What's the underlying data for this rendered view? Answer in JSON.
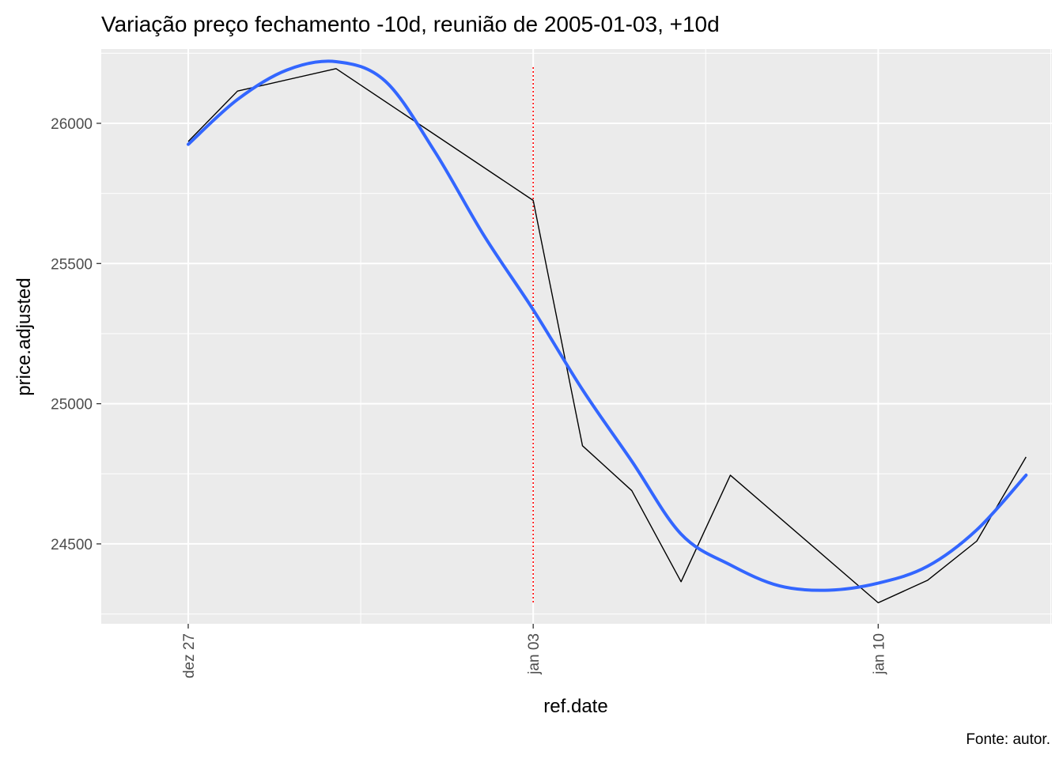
{
  "chart_data": {
    "type": "line",
    "title": "Variação preço fechamento -10d, reunião de 2005-01-03, +10d",
    "xlabel": "ref.date",
    "ylabel": "price.adjusted",
    "caption": "Fonte: autor.",
    "x_ticks": [
      {
        "date": "2004-12-27",
        "label": "dez 27"
      },
      {
        "date": "2005-01-03",
        "label": "jan 03"
      },
      {
        "date": "2005-01-10",
        "label": "jan 10"
      }
    ],
    "y_ticks": [
      24500,
      25000,
      25500,
      26000
    ],
    "xlim": [
      "2004-12-26",
      "2005-01-13"
    ],
    "ylim": [
      24215,
      26265
    ],
    "grid": true,
    "event_line": {
      "date": "2005-01-03",
      "ymin": 24290,
      "ymax": 26200,
      "color": "#ff0000",
      "style": "dotted"
    },
    "series": [
      {
        "color": "#000000",
        "points": [
          {
            "date": "2004-12-27",
            "value": 25935
          },
          {
            "date": "2004-12-28",
            "value": 26115
          },
          {
            "date": "2004-12-30",
            "value": 26195
          },
          {
            "date": "2005-01-03",
            "value": 25725
          },
          {
            "date": "2005-01-04",
            "value": 24850
          },
          {
            "date": "2005-01-05",
            "value": 24690
          },
          {
            "date": "2005-01-06",
            "value": 24365
          },
          {
            "date": "2005-01-07",
            "value": 24745
          },
          {
            "date": "2005-01-10",
            "value": 24290
          },
          {
            "date": "2005-01-11",
            "value": 24370
          },
          {
            "date": "2005-01-12",
            "value": 24510
          },
          {
            "date": "2005-01-13",
            "value": 24810
          }
        ]
      },
      {
        "type": "smooth",
        "color": "#3366ff",
        "points": [
          {
            "date": "2004-12-27",
            "value": 25925
          },
          {
            "date": "2004-12-28",
            "value": 26085
          },
          {
            "date": "2004-12-29",
            "value": 26190
          },
          {
            "date": "2004-12-30",
            "value": 26220
          },
          {
            "date": "2004-12-31",
            "value": 26150
          },
          {
            "date": "2005-01-01",
            "value": 25900
          },
          {
            "date": "2005-01-02",
            "value": 25600
          },
          {
            "date": "2005-01-03",
            "value": 25335
          },
          {
            "date": "2005-01-04",
            "value": 25050
          },
          {
            "date": "2005-01-05",
            "value": 24795
          },
          {
            "date": "2005-01-06",
            "value": 24535
          },
          {
            "date": "2005-01-07",
            "value": 24425
          },
          {
            "date": "2005-01-08",
            "value": 24350
          },
          {
            "date": "2005-01-09",
            "value": 24335
          },
          {
            "date": "2005-01-10",
            "value": 24360
          },
          {
            "date": "2005-01-11",
            "value": 24420
          },
          {
            "date": "2005-01-12",
            "value": 24550
          },
          {
            "date": "2005-01-13",
            "value": 24745
          }
        ]
      }
    ]
  }
}
